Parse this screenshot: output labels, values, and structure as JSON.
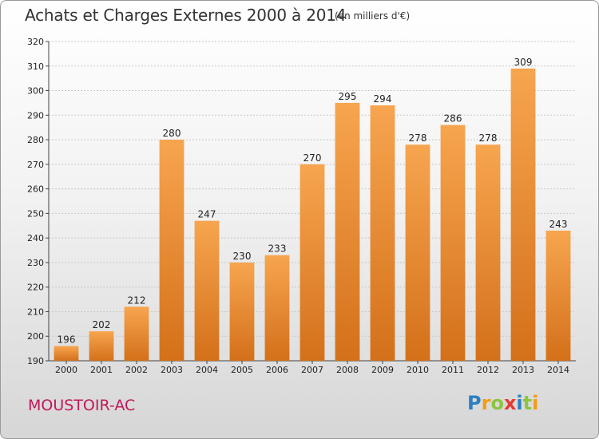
{
  "header": {
    "title": "Achats et Charges Externes 2000 à 2014",
    "subtitle": "(en milliers d'€)"
  },
  "footer": {
    "place": "MOUSTOIR-AC",
    "logo_letters": [
      "P",
      "r",
      "o",
      "x",
      "i",
      "t",
      "i"
    ]
  },
  "colors": {
    "bar_light": "#f7a54f",
    "bar_dark": "#d4701a",
    "place_text": "#c2185b"
  },
  "chart_data": {
    "type": "bar",
    "title": "Achats et Charges Externes 2000 à 2014",
    "subtitle": "(en milliers d'€)",
    "xlabel": "",
    "ylabel": "",
    "categories": [
      "2000",
      "2001",
      "2002",
      "2003",
      "2004",
      "2005",
      "2006",
      "2007",
      "2008",
      "2009",
      "2010",
      "2011",
      "2012",
      "2013",
      "2014"
    ],
    "values": [
      196,
      202,
      212,
      280,
      247,
      230,
      233,
      270,
      295,
      294,
      278,
      286,
      278,
      309,
      243
    ],
    "ylim": [
      190,
      320
    ],
    "yticks": [
      190,
      200,
      210,
      220,
      230,
      240,
      250,
      260,
      270,
      280,
      290,
      300,
      310,
      320
    ],
    "grid": true,
    "data_labels": true
  }
}
